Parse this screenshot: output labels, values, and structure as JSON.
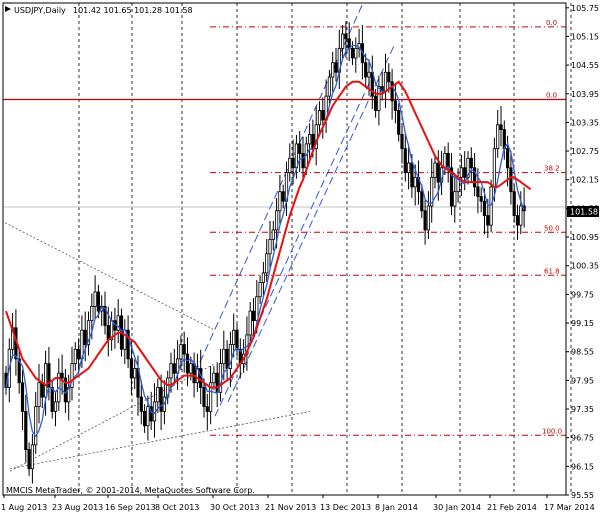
{
  "header": {
    "symbol": "USDJPY,Daily",
    "ohlc": "101.42 101.65 101.28 101.58"
  },
  "footer": {
    "copyright": "MMCIS MetaTrader, © 2001-2014, MetaQuotes Software Corp."
  },
  "price_badge": "101.58",
  "colors": {
    "candle": "#000000",
    "fast_ma": "#2d5fd6",
    "slow_ma": "#e81010",
    "fibo": "#cc0000",
    "channel": "#3355dd",
    "triangle": "#555555",
    "grid": "#000000",
    "current_price_line": "#c0c0c0"
  },
  "chart_data": {
    "type": "candlestick",
    "title": "USDJPY,Daily",
    "ylim": [
      95.55,
      105.85
    ],
    "y_ticks": [
      "105.75",
      "105.15",
      "104.55",
      "103.95",
      "103.35",
      "102.75",
      "102.15",
      "101.55",
      "100.95",
      "100.35",
      "99.75",
      "99.15",
      "98.55",
      "97.95",
      "97.35",
      "96.75",
      "96.15",
      "95.55"
    ],
    "x_labels": [
      "1 Aug 2013",
      "23 Aug 2013",
      "16 Sep 2013",
      "8 Oct 2013",
      "30 Oct 2013",
      "21 Nov 2013",
      "13 Dec 2013",
      "8 Jan 2014",
      "30 Jan 2014",
      "21 Feb 2014",
      "17 Mar 2014"
    ],
    "last_price": 101.58,
    "fibo_levels": [
      {
        "label": "0.0",
        "price": 105.35
      },
      {
        "label": "0.0",
        "price": 103.83
      },
      {
        "label": "38.2",
        "price": 102.3
      },
      {
        "label": "50.0",
        "price": 101.05
      },
      {
        "label": "61.8",
        "price": 100.15
      },
      {
        "label": "100.0",
        "price": 96.8
      }
    ],
    "horizontal_line": 103.83,
    "close_series": [
      97.8,
      98.6,
      99.05,
      98.4,
      97.9,
      97.3,
      96.5,
      96.1,
      96.6,
      97.4,
      97.9,
      97.6,
      98.3,
      97.8,
      97.3,
      97.5,
      98.1,
      98.0,
      97.5,
      97.8,
      98.3,
      98.6,
      98.4,
      99.0,
      98.7,
      99.2,
      99.5,
      99.8,
      99.4,
      99.5,
      99.1,
      98.8,
      99.2,
      99.0,
      99.3,
      98.6,
      99.0,
      98.4,
      98.0,
      98.2,
      97.6,
      97.3,
      97.0,
      97.4,
      97.1,
      97.5,
      97.8,
      97.3,
      97.6,
      98.0,
      98.3,
      98.1,
      98.4,
      98.7,
      98.5,
      98.1,
      98.3,
      97.9,
      98.2,
      97.8,
      97.4,
      97.3,
      97.9,
      98.1,
      97.7,
      98.3,
      98.6,
      98.2,
      98.7,
      99.0,
      98.6,
      98.3,
      98.5,
      98.9,
      99.4,
      99.2,
      99.7,
      100.0,
      100.2,
      100.6,
      100.9,
      101.1,
      101.5,
      101.9,
      101.7,
      102.3,
      102.6,
      102.4,
      102.9,
      102.7,
      102.4,
      102.9,
      103.1,
      102.8,
      103.3,
      103.6,
      103.4,
      103.9,
      104.3,
      104.6,
      104.4,
      104.9,
      105.2,
      105.1,
      104.9,
      104.7,
      104.9,
      105.0,
      104.6,
      104.3,
      104.4,
      103.9,
      103.6,
      104.1,
      104.0,
      104.4,
      104.2,
      103.8,
      103.6,
      103.1,
      102.8,
      102.3,
      102.5,
      102.0,
      102.2,
      101.9,
      101.5,
      101.1,
      101.6,
      102.2,
      102.5,
      102.1,
      102.4,
      102.7,
      102.4,
      101.6,
      101.9,
      102.2,
      102.4,
      102.2,
      102.6,
      102.4,
      102.0,
      101.8,
      101.7,
      101.4,
      101.2,
      102.0,
      102.8,
      103.3,
      103.2,
      102.8,
      102.4,
      101.9,
      101.4,
      101.2,
      101.6,
      101.5
    ],
    "slow_ma": [
      99.4,
      99.2,
      99.0,
      98.8,
      98.6,
      98.4,
      98.3,
      98.2,
      98.1,
      98.0,
      97.95,
      97.9,
      97.85,
      97.9,
      97.95,
      98.0,
      98.0,
      97.95,
      97.9,
      97.9,
      97.95,
      98.0,
      98.05,
      98.1,
      98.15,
      98.2,
      98.3,
      98.4,
      98.5,
      98.6,
      98.7,
      98.8,
      98.85,
      98.9,
      98.95,
      98.95,
      98.9,
      98.85,
      98.8,
      98.75,
      98.65,
      98.55,
      98.45,
      98.35,
      98.25,
      98.15,
      98.05,
      97.95,
      97.9,
      97.85,
      97.85,
      97.9,
      97.95,
      98.0,
      98.05,
      98.05,
      98.05,
      98.05,
      98.0,
      97.95,
      97.9,
      97.85,
      97.8,
      97.8,
      97.8,
      97.85,
      97.9,
      97.95,
      98.0,
      98.1,
      98.2,
      98.3,
      98.4,
      98.55,
      98.7,
      98.85,
      99.05,
      99.25,
      99.45,
      99.65,
      99.9,
      100.15,
      100.4,
      100.65,
      100.9,
      101.15,
      101.4,
      101.6,
      101.8,
      102.0,
      102.15,
      102.35,
      102.55,
      102.75,
      102.95,
      103.1,
      103.25,
      103.4,
      103.55,
      103.7,
      103.8,
      103.9,
      104.0,
      104.1,
      104.15,
      104.2,
      104.2,
      104.2,
      104.15,
      104.1,
      104.05,
      104.0,
      103.95,
      103.95,
      103.95,
      104.0,
      104.05,
      104.1,
      104.15,
      104.2,
      104.1,
      104.0,
      103.85,
      103.7,
      103.55,
      103.4,
      103.25,
      103.1,
      102.95,
      102.8,
      102.65,
      102.55,
      102.45,
      102.4,
      102.35,
      102.3,
      102.25,
      102.2,
      102.15,
      102.1,
      102.1,
      102.1,
      102.1,
      102.1,
      102.1,
      102.1,
      102.1,
      102.05,
      102.0,
      102.0,
      102.05,
      102.1,
      102.15,
      102.2,
      102.2,
      102.15,
      102.1,
      102.05,
      102.0,
      101.95
    ]
  }
}
